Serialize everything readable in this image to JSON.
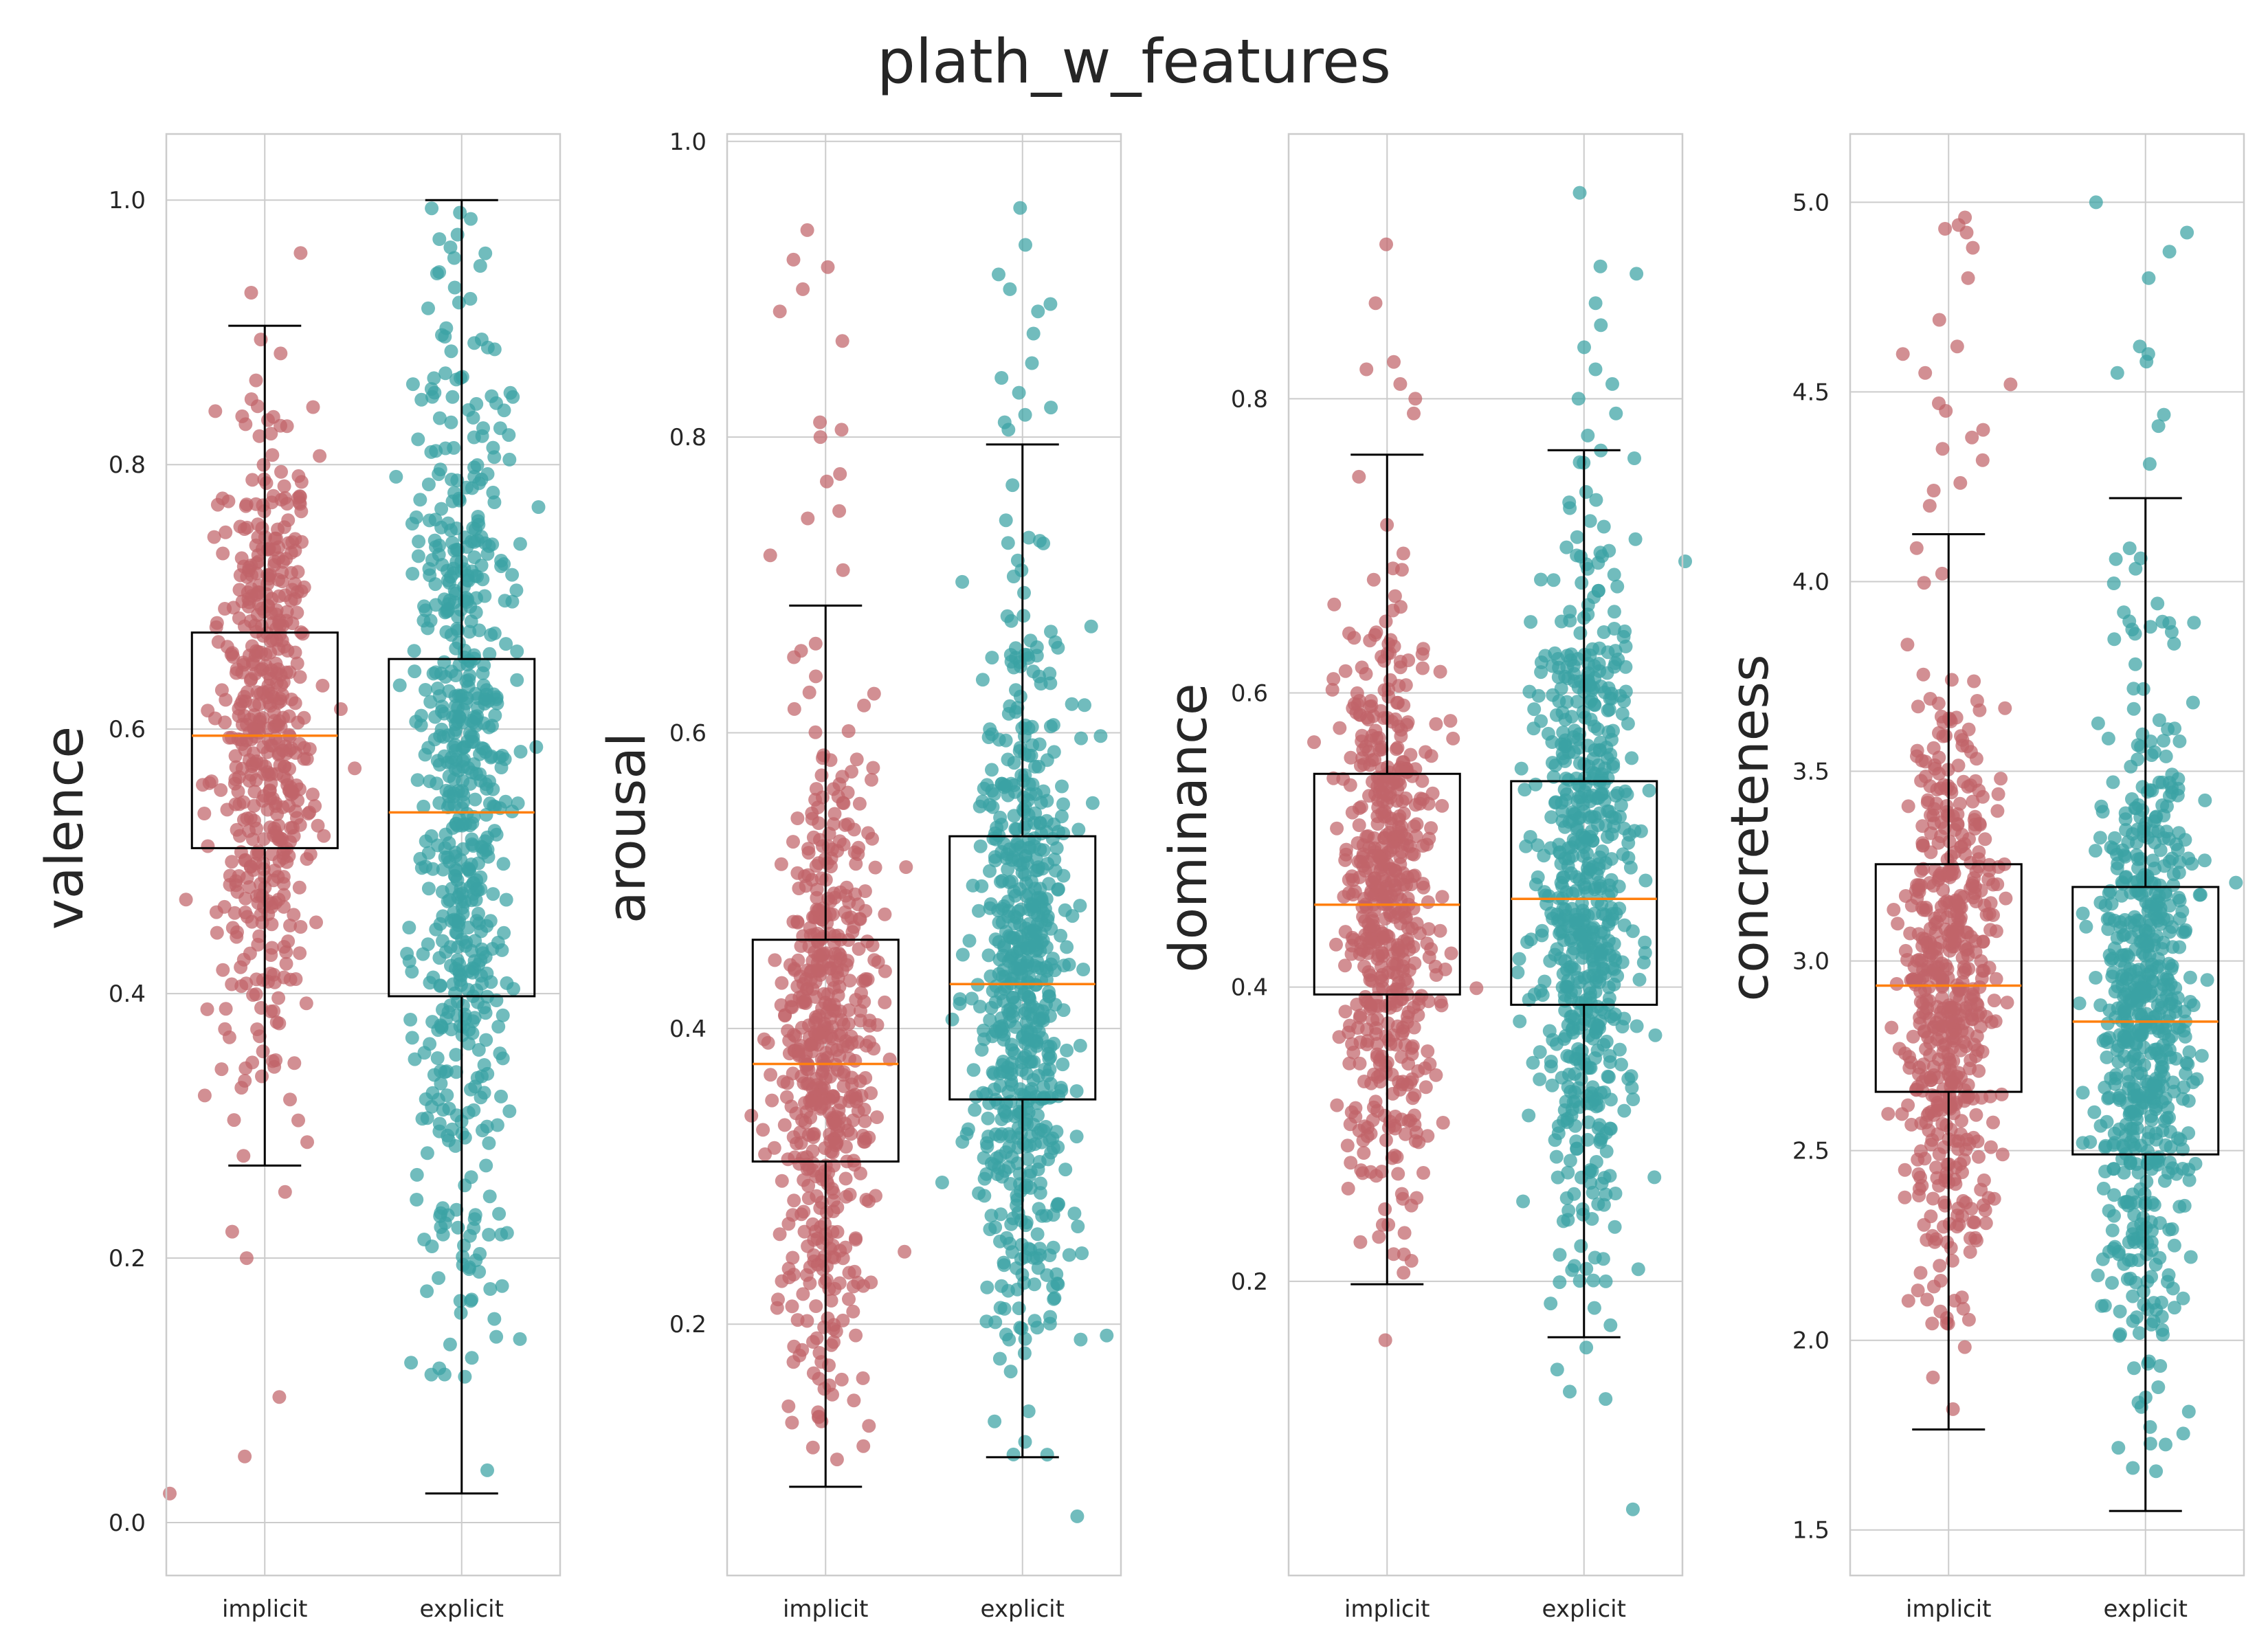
{
  "title": "plath_w_features",
  "colors": {
    "implicit": "#c0646a",
    "explicit": "#3aa2a4",
    "median": "#ff7f0e"
  },
  "chart_data": [
    {
      "type": "box",
      "ylabel": "valence",
      "categories": [
        "implicit",
        "explicit"
      ],
      "ylim": [
        -0.04,
        1.05
      ],
      "yticks": [
        0.0,
        0.2,
        0.4,
        0.6,
        0.8,
        1.0
      ],
      "ytick_labels": [
        "0.0",
        "0.2",
        "0.4",
        "0.6",
        "0.8",
        "1.0"
      ],
      "boxes": [
        {
          "category": "implicit",
          "whisker_low": 0.27,
          "q1": 0.51,
          "median": 0.595,
          "q3": 0.673,
          "whisker_high": 0.905,
          "n_points": 520,
          "spread": 0.12,
          "outliers": [
            0.96,
            0.93,
            0.022,
            0.05,
            0.095,
            0.2,
            0.22,
            0.25
          ]
        },
        {
          "category": "explicit",
          "whisker_low": 0.022,
          "q1": 0.398,
          "median": 0.537,
          "q3": 0.653,
          "whisker_high": 1.0,
          "n_points": 640,
          "spread": 0.19,
          "outliers": []
        }
      ]
    },
    {
      "type": "box",
      "ylabel": "arousal",
      "categories": [
        "implicit",
        "explicit"
      ],
      "ylim": [
        0.03,
        1.005
      ],
      "yticks": [
        0.2,
        0.4,
        0.6,
        0.8,
        1.0
      ],
      "ytick_labels": [
        "0.2",
        "0.4",
        "0.6",
        "0.8",
        "1.0"
      ],
      "boxes": [
        {
          "category": "implicit",
          "whisker_low": 0.09,
          "q1": 0.31,
          "median": 0.376,
          "q3": 0.46,
          "whisker_high": 0.686,
          "n_points": 560,
          "spread": 0.1,
          "outliers": [
            0.94,
            0.92,
            0.915,
            0.9,
            0.885,
            0.865,
            0.81,
            0.805,
            0.8,
            0.775,
            0.77,
            0.75,
            0.745,
            0.72,
            0.71
          ]
        },
        {
          "category": "explicit",
          "whisker_low": 0.11,
          "q1": 0.352,
          "median": 0.43,
          "q3": 0.53,
          "whisker_high": 0.795,
          "n_points": 640,
          "spread": 0.12,
          "outliers": [
            0.955,
            0.93,
            0.91,
            0.9,
            0.89,
            0.885,
            0.87,
            0.85,
            0.84,
            0.83,
            0.82,
            0.815,
            0.81,
            0.805,
            0.07
          ]
        }
      ]
    },
    {
      "type": "box",
      "ylabel": "dominance",
      "categories": [
        "implicit",
        "explicit"
      ],
      "ylim": [
        0.0,
        0.98
      ],
      "yticks": [
        0.2,
        0.4,
        0.6,
        0.8
      ],
      "ytick_labels": [
        "0.2",
        "0.4",
        "0.6",
        "0.8"
      ],
      "boxes": [
        {
          "category": "implicit",
          "whisker_low": 0.198,
          "q1": 0.395,
          "median": 0.456,
          "q3": 0.545,
          "whisker_high": 0.762,
          "n_points": 560,
          "spread": 0.1,
          "outliers": [
            0.905,
            0.865,
            0.825,
            0.82,
            0.81,
            0.8,
            0.79,
            0.16
          ]
        },
        {
          "category": "explicit",
          "whisker_low": 0.162,
          "q1": 0.388,
          "median": 0.46,
          "q3": 0.54,
          "whisker_high": 0.765,
          "n_points": 640,
          "spread": 0.12,
          "outliers": [
            0.94,
            0.89,
            0.885,
            0.865,
            0.85,
            0.835,
            0.82,
            0.81,
            0.8,
            0.79,
            0.775,
            0.155,
            0.14,
            0.125,
            0.12,
            0.045
          ]
        }
      ]
    },
    {
      "type": "box",
      "ylabel": "concreteness",
      "categories": [
        "implicit",
        "explicit"
      ],
      "ylim": [
        1.38,
        5.18
      ],
      "yticks": [
        1.5,
        2.0,
        2.5,
        3.0,
        3.5,
        4.0,
        4.5,
        5.0
      ],
      "ytick_labels": [
        "1.5",
        "2.0",
        "2.5",
        "3.0",
        "3.5",
        "4.0",
        "4.5",
        "5.0"
      ],
      "boxes": [
        {
          "category": "implicit",
          "whisker_low": 1.765,
          "q1": 2.655,
          "median": 2.935,
          "q3": 3.255,
          "whisker_high": 4.125,
          "n_points": 560,
          "spread": 0.38,
          "outliers": [
            4.96,
            4.94,
            4.93,
            4.92,
            4.88,
            4.8,
            4.69,
            4.62,
            4.6,
            4.55,
            4.52,
            4.47,
            4.45,
            4.4,
            4.38,
            4.35,
            4.32,
            4.26,
            4.24,
            4.2
          ]
        },
        {
          "category": "explicit",
          "whisker_low": 1.55,
          "q1": 2.49,
          "median": 2.84,
          "q3": 3.195,
          "whisker_high": 4.22,
          "n_points": 640,
          "spread": 0.42,
          "outliers": [
            5.0,
            4.92,
            4.87,
            4.8,
            4.62,
            4.6,
            4.58,
            4.55,
            4.44,
            4.41,
            4.31
          ]
        }
      ]
    }
  ]
}
